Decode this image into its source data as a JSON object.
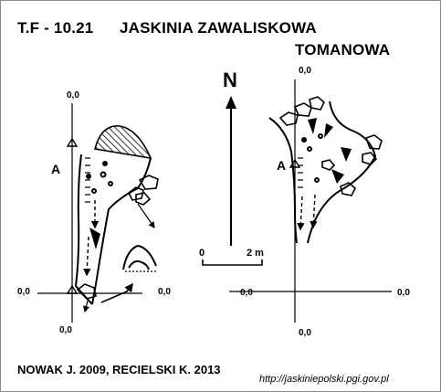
{
  "header": {
    "code": "T.F - 10.21",
    "name": "JASKINIA ZAWALISKOWA",
    "subname": "TOMANOWA"
  },
  "left_plan": {
    "top_coord": "0,0",
    "bottom_coord": "0,0",
    "left_coord": "0,0",
    "right_coord": "0,0",
    "point_label": "A"
  },
  "right_plan": {
    "top_coord": "0,0",
    "bottom_coord": "0,0",
    "left_coord": "0,0",
    "right_coord": "0,0",
    "point_label": "A"
  },
  "north_label": "N",
  "scale_bar": {
    "start": "0",
    "end": "2 m"
  },
  "footer": {
    "authors": "NOWAK J. 2009, RECIELSKI K. 2013",
    "url": "http://jaskiniepolski.pgi.gov.pl"
  },
  "colors": {
    "ink": "#000000",
    "paper": "#ffffff",
    "frame": "#8a8a8a"
  }
}
